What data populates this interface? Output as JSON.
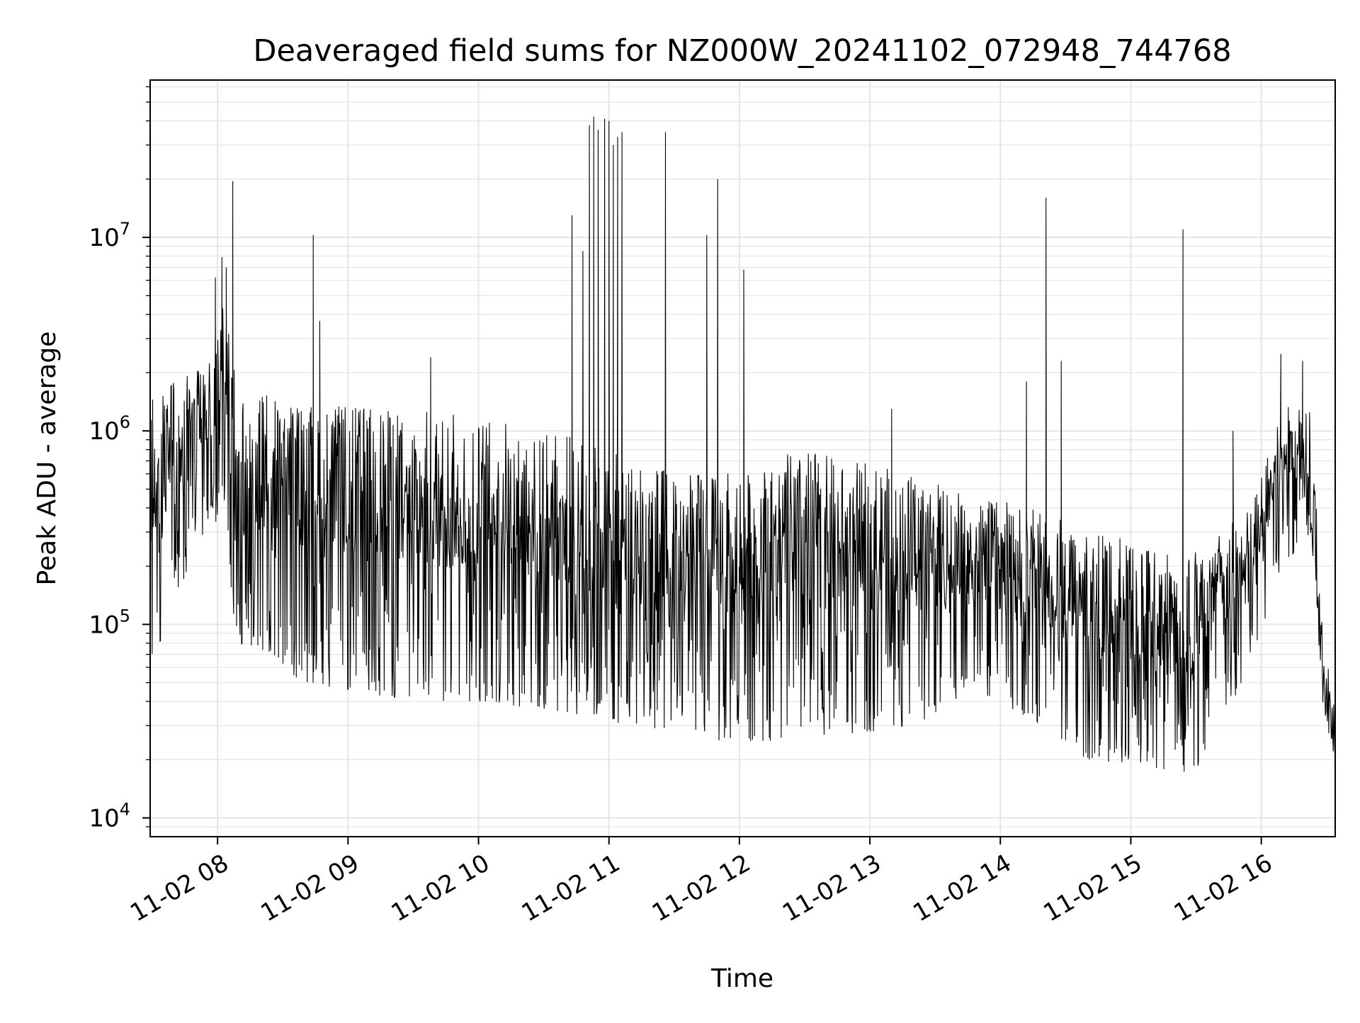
{
  "chart_data": {
    "type": "line",
    "title": "Deaveraged field sums for NZ000W_20241102_072948_744768",
    "xlabel": "Time",
    "ylabel": "Peak ADU - average",
    "x_range": [
      "2024-11-02 07:29",
      "2024-11-02 16:34"
    ],
    "yscale": "log",
    "ylim": [
      8000,
      65000000
    ],
    "grid": true,
    "line_color": "#000000",
    "grid_color": "#e5e5e5",
    "x_ticks": [
      {
        "time": "2024-11-02 08:00",
        "label": "11-02 08"
      },
      {
        "time": "2024-11-02 09:00",
        "label": "11-02 09"
      },
      {
        "time": "2024-11-02 10:00",
        "label": "11-02 10"
      },
      {
        "time": "2024-11-02 11:00",
        "label": "11-02 11"
      },
      {
        "time": "2024-11-02 12:00",
        "label": "11-02 12"
      },
      {
        "time": "2024-11-02 13:00",
        "label": "11-02 13"
      },
      {
        "time": "2024-11-02 14:00",
        "label": "11-02 14"
      },
      {
        "time": "2024-11-02 15:00",
        "label": "11-02 15"
      },
      {
        "time": "2024-11-02 16:00",
        "label": "11-02 16"
      }
    ],
    "y_ticks": [
      {
        "value": 10000,
        "base": "10",
        "exp": "4"
      },
      {
        "value": 100000,
        "base": "10",
        "exp": "5"
      },
      {
        "value": 1000000,
        "base": "10",
        "exp": "6"
      },
      {
        "value": 10000000,
        "base": "10",
        "exp": "7"
      }
    ],
    "series": [
      {
        "profile": [
          [
            "2024-11-02 07:29",
            60000,
            1500000
          ],
          [
            "2024-11-02 07:58",
            400000,
            2400000
          ],
          [
            "2024-11-02 08:00",
            300000,
            6000000
          ],
          [
            "2024-11-02 08:10",
            80000,
            1800000
          ],
          [
            "2024-11-02 08:40",
            50000,
            1400000
          ],
          [
            "2024-11-02 09:30",
            40000,
            1300000
          ],
          [
            "2024-11-02 10:00",
            40000,
            1200000
          ],
          [
            "2024-11-02 10:40",
            35000,
            1000000
          ],
          [
            "2024-11-02 11:10",
            30000,
            700000
          ],
          [
            "2024-11-02 11:50",
            25000,
            600000
          ],
          [
            "2024-11-02 12:30",
            25000,
            800000
          ],
          [
            "2024-11-02 13:20",
            30000,
            600000
          ],
          [
            "2024-11-02 13:50",
            45000,
            450000
          ],
          [
            "2024-11-02 14:20",
            30000,
            400000
          ],
          [
            "2024-11-02 14:40",
            20000,
            300000
          ],
          [
            "2024-11-02 15:30",
            17000,
            250000
          ],
          [
            "2024-11-02 15:55",
            60000,
            400000
          ],
          [
            "2024-11-02 16:10",
            200000,
            1300000
          ],
          [
            "2024-11-02 16:23",
            300000,
            1500000
          ],
          [
            "2024-11-02 16:28",
            40000,
            100000
          ],
          [
            "2024-11-02 16:34",
            16000,
            35000
          ]
        ],
        "spikes": [
          [
            "2024-11-02 07:59",
            6200000
          ],
          [
            "2024-11-02 08:02",
            7900000
          ],
          [
            "2024-11-02 08:04",
            7000000
          ],
          [
            "2024-11-02 08:07",
            19500000
          ],
          [
            "2024-11-02 08:44",
            10300000
          ],
          [
            "2024-11-02 08:47",
            3700000
          ],
          [
            "2024-11-02 09:38",
            2400000
          ],
          [
            "2024-11-02 10:43",
            13000000
          ],
          [
            "2024-11-02 10:48",
            8500000
          ],
          [
            "2024-11-02 10:51",
            38000000
          ],
          [
            "2024-11-02 10:53",
            42000000
          ],
          [
            "2024-11-02 10:55",
            36000000
          ],
          [
            "2024-11-02 10:58",
            41000000
          ],
          [
            "2024-11-02 11:00",
            40000000
          ],
          [
            "2024-11-02 11:02",
            30000000
          ],
          [
            "2024-11-02 11:04",
            33000000
          ],
          [
            "2024-11-02 11:06",
            35000000
          ],
          [
            "2024-11-02 11:26",
            35000000
          ],
          [
            "2024-11-02 11:45",
            10300000
          ],
          [
            "2024-11-02 11:50",
            20000000
          ],
          [
            "2024-11-02 12:02",
            6800000
          ],
          [
            "2024-11-02 13:10",
            1300000
          ],
          [
            "2024-11-02 14:12",
            1800000
          ],
          [
            "2024-11-02 14:21",
            16000000
          ],
          [
            "2024-11-02 14:28",
            2300000
          ],
          [
            "2024-11-02 15:24",
            11000000
          ],
          [
            "2024-11-02 15:47",
            1000000
          ],
          [
            "2024-11-02 16:09",
            2500000
          ],
          [
            "2024-11-02 16:19",
            2300000
          ]
        ]
      }
    ]
  }
}
